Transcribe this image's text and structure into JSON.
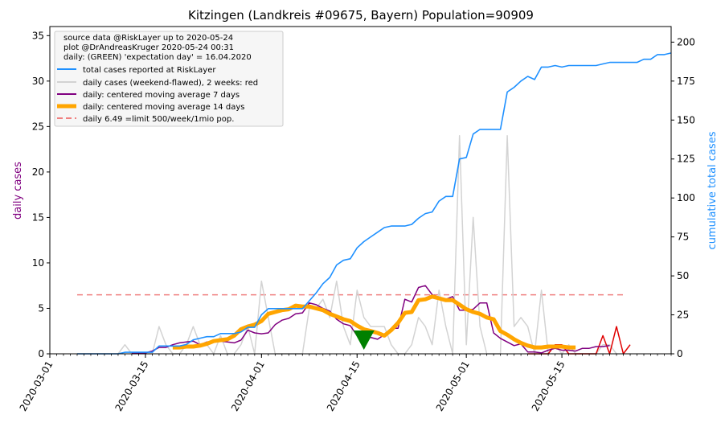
{
  "chart_data": {
    "type": "line",
    "title": "Kitzingen (Landkreis #09675, Bayern) Population=90909",
    "ylabel_left": "daily cases",
    "ylabel_right": "cumulative total cases",
    "ylim_left": [
      0,
      36
    ],
    "ylim_right": [
      0,
      210
    ],
    "yticks_left": [
      0,
      5,
      10,
      15,
      20,
      25,
      30,
      35
    ],
    "yticks_right": [
      0,
      25,
      50,
      75,
      100,
      125,
      150,
      175,
      200
    ],
    "xlim": [
      "2020-03-01",
      "2020-05-31"
    ],
    "xtick_labels": [
      "2020-03-01",
      "2020-03-15",
      "2020-04-01",
      "2020-04-15",
      "2020-05-01",
      "2020-05-15"
    ],
    "grid": false,
    "legend_position": "upper-left",
    "legend": {
      "info_lines": [
        "source data @RiskLayer up to 2020-05-24",
        "plot @DrAndreasKruger 2020-05-24 00:31",
        "daily: (GREEN) 'expectation day' = 16.04.2020"
      ],
      "entries": [
        {
          "label": "total cases reported at RiskLayer",
          "color": "#1e90ff",
          "style": "line"
        },
        {
          "label": "daily cases (weekend-flawed), 2 weeks: red",
          "color": "#d3d3d3",
          "style": "line"
        },
        {
          "label": "daily: centered moving average 7 days",
          "color": "#800080",
          "style": "line"
        },
        {
          "label": "daily: centered moving average 14 days",
          "color": "#ffa500",
          "style": "thick"
        },
        {
          "label": "daily 6.49 =limit 500/week/1mio pop.",
          "color": "#f08080",
          "style": "dashed"
        }
      ]
    },
    "limit_line": {
      "value": 6.49,
      "start": "2020-03-05",
      "end": "2020-05-24"
    },
    "expectation_day": {
      "date": "2020-04-16",
      "value": 1.5,
      "color": "#008000"
    },
    "series": [
      {
        "name": "total cases reported at RiskLayer",
        "axis": "right",
        "color": "#1e90ff",
        "start": "2020-03-05",
        "values": [
          0,
          0,
          0,
          0,
          0,
          0,
          0,
          1,
          1,
          1,
          1,
          1,
          5,
          5,
          5,
          5,
          6,
          9,
          10,
          11,
          11,
          13,
          13,
          13,
          14,
          17,
          17,
          25,
          29,
          29,
          29,
          29,
          29,
          29,
          34,
          39,
          45,
          49,
          57,
          60,
          61,
          68,
          72,
          75,
          78,
          81,
          82,
          82,
          82,
          83,
          87,
          90,
          91,
          98,
          101,
          101,
          125,
          126,
          141,
          144,
          144,
          144,
          144,
          168,
          171,
          175,
          178,
          176,
          184,
          184,
          185,
          184,
          185,
          185,
          185,
          185,
          185,
          186,
          187,
          187,
          187,
          187,
          187,
          189,
          189,
          192,
          192,
          193
        ]
      },
      {
        "name": "daily cases (weekend-flawed), 2 weeks: red",
        "axis": "left",
        "color": "#d3d3d3",
        "start": "2020-03-05",
        "values": [
          0,
          0,
          0,
          0,
          0,
          0,
          0,
          1,
          0,
          0,
          0,
          0,
          3,
          1,
          0,
          0,
          1,
          3,
          1,
          1,
          0,
          2,
          0,
          0,
          1,
          3,
          0,
          8,
          4,
          0,
          0,
          0,
          0,
          0,
          5,
          5,
          6,
          4,
          8,
          3,
          1,
          7,
          4,
          3,
          3,
          3,
          1,
          0,
          0,
          1,
          4,
          3,
          1,
          7,
          3,
          0,
          24,
          1,
          15,
          3,
          0,
          0,
          0,
          24,
          3,
          4,
          3,
          0,
          7,
          0,
          1,
          0,
          1,
          0,
          0,
          0,
          0,
          1,
          1,
          0
        ]
      },
      {
        "name": "daily cases last 2 weeks",
        "axis": "left",
        "color": "#e00000",
        "start": "2020-05-10",
        "values": [
          0,
          0,
          0,
          0,
          1,
          1,
          0,
          0,
          0,
          0,
          0,
          2,
          0,
          3,
          0,
          1
        ]
      },
      {
        "name": "daily: centered moving average 7 days",
        "axis": "left",
        "color": "#800080",
        "start": "2020-03-13",
        "values": [
          0.1,
          0.1,
          0.1,
          0.3,
          0.7,
          0.7,
          1.0,
          1.2,
          1.3,
          1.4,
          1.0,
          1.3,
          1.3,
          1.4,
          1.3,
          1.2,
          1.5,
          2.6,
          2.3,
          2.2,
          2.3,
          3.2,
          3.7,
          3.9,
          4.4,
          4.5,
          5.6,
          5.4,
          5.0,
          4.7,
          3.8,
          3.3,
          3.1,
          2.0,
          1.7,
          1.8,
          1.6,
          2.1,
          2.8,
          2.8,
          6.0,
          5.7,
          7.3,
          7.5,
          6.5,
          6.2,
          6.0,
          6.3,
          4.8,
          4.8,
          4.9,
          5.6,
          5.6,
          2.3,
          1.7,
          1.3,
          0.9,
          1.1,
          0.2,
          0.2,
          0.1,
          0.4,
          0.6,
          0.4,
          0.4,
          0.3,
          0.6,
          0.6,
          0.8,
          0.8,
          0.9
        ]
      },
      {
        "name": "daily: centered moving average 14 days",
        "axis": "left",
        "color": "#ffa500",
        "start": "2020-03-19",
        "values": [
          0.7,
          0.7,
          0.8,
          0.8,
          0.9,
          1.1,
          1.4,
          1.5,
          1.6,
          2.0,
          2.7,
          3.0,
          3.2,
          3.6,
          4.4,
          4.6,
          4.8,
          4.9,
          5.3,
          5.2,
          5.2,
          5.0,
          4.8,
          4.4,
          4.1,
          3.8,
          3.6,
          3.1,
          2.7,
          2.5,
          2.3,
          2.0,
          2.6,
          3.4,
          4.5,
          4.6,
          5.9,
          6.0,
          6.3,
          6.1,
          5.9,
          5.9,
          5.4,
          4.9,
          4.6,
          4.4,
          4.0,
          3.8,
          2.5,
          2.1,
          1.6,
          1.2,
          0.9,
          0.7,
          0.7,
          0.8,
          0.8,
          0.8,
          0.7,
          0.7
        ]
      }
    ]
  }
}
